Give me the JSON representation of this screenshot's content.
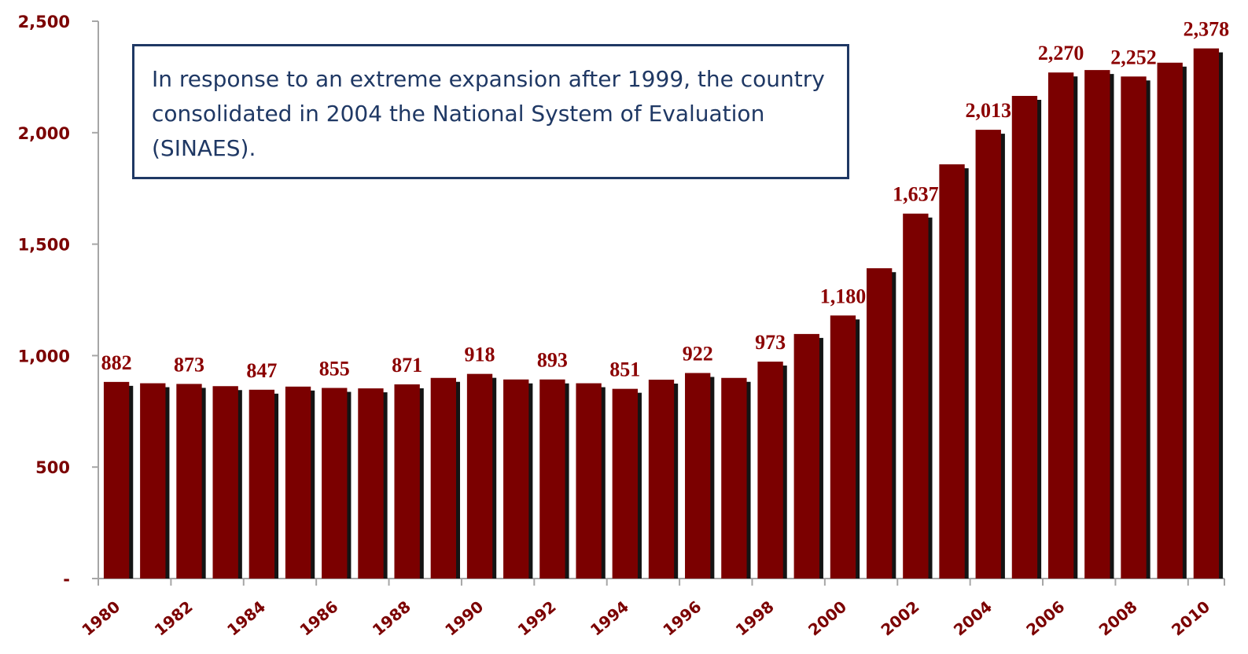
{
  "annotation": {
    "text": "In response to an extreme expansion after 1999, the country consolidated in 2004 the National System of Evaluation (SINAES)."
  },
  "colors": {
    "bar": "#7b0000",
    "shadow": "#141414",
    "label": "#8b0000",
    "annotation_border": "#1f3864"
  },
  "chart_data": {
    "type": "bar",
    "title": "",
    "xlabel": "",
    "ylabel": "",
    "ylim": [
      0,
      2500
    ],
    "yticks": [
      0,
      500,
      1000,
      1500,
      2000,
      2500
    ],
    "ytick_labels": [
      "-",
      "500",
      "1,000",
      "1,500",
      "2,000",
      "2,500"
    ],
    "categories": [
      "1980",
      "1981",
      "1982",
      "1983",
      "1984",
      "1985",
      "1986",
      "1987",
      "1988",
      "1989",
      "1990",
      "1991",
      "1992",
      "1993",
      "1994",
      "1995",
      "1996",
      "1997",
      "1998",
      "1999",
      "2000",
      "2001",
      "2002",
      "2003",
      "2004",
      "2005",
      "2006",
      "2007",
      "2008",
      "2009",
      "2010"
    ],
    "xtick_labels": [
      "1980",
      "1982",
      "1984",
      "1986",
      "1988",
      "1990",
      "1992",
      "1994",
      "1996",
      "1998",
      "2000",
      "2002",
      "2004",
      "2006",
      "2008",
      "2010"
    ],
    "values": [
      882,
      876,
      873,
      863,
      847,
      861,
      855,
      853,
      871,
      900,
      918,
      893,
      893,
      876,
      851,
      892,
      922,
      900,
      973,
      1097,
      1180,
      1392,
      1637,
      1858,
      2013,
      2165,
      2270,
      2281,
      2252,
      2314,
      2378
    ],
    "data_labels": [
      {
        "year": "1980",
        "text": "882"
      },
      {
        "year": "1982",
        "text": "873"
      },
      {
        "year": "1984",
        "text": "847"
      },
      {
        "year": "1986",
        "text": "855"
      },
      {
        "year": "1988",
        "text": "871"
      },
      {
        "year": "1990",
        "text": "918"
      },
      {
        "year": "1992",
        "text": "893"
      },
      {
        "year": "1994",
        "text": "851"
      },
      {
        "year": "1996",
        "text": "922"
      },
      {
        "year": "1998",
        "text": "973"
      },
      {
        "year": "2000",
        "text": "1,180"
      },
      {
        "year": "2002",
        "text": "1,637"
      },
      {
        "year": "2004",
        "text": "2,013"
      },
      {
        "year": "2006",
        "text": "2,270"
      },
      {
        "year": "2008",
        "text": "2,252"
      },
      {
        "year": "2010",
        "text": "2,378"
      }
    ],
    "grid": false,
    "legend": "none"
  }
}
